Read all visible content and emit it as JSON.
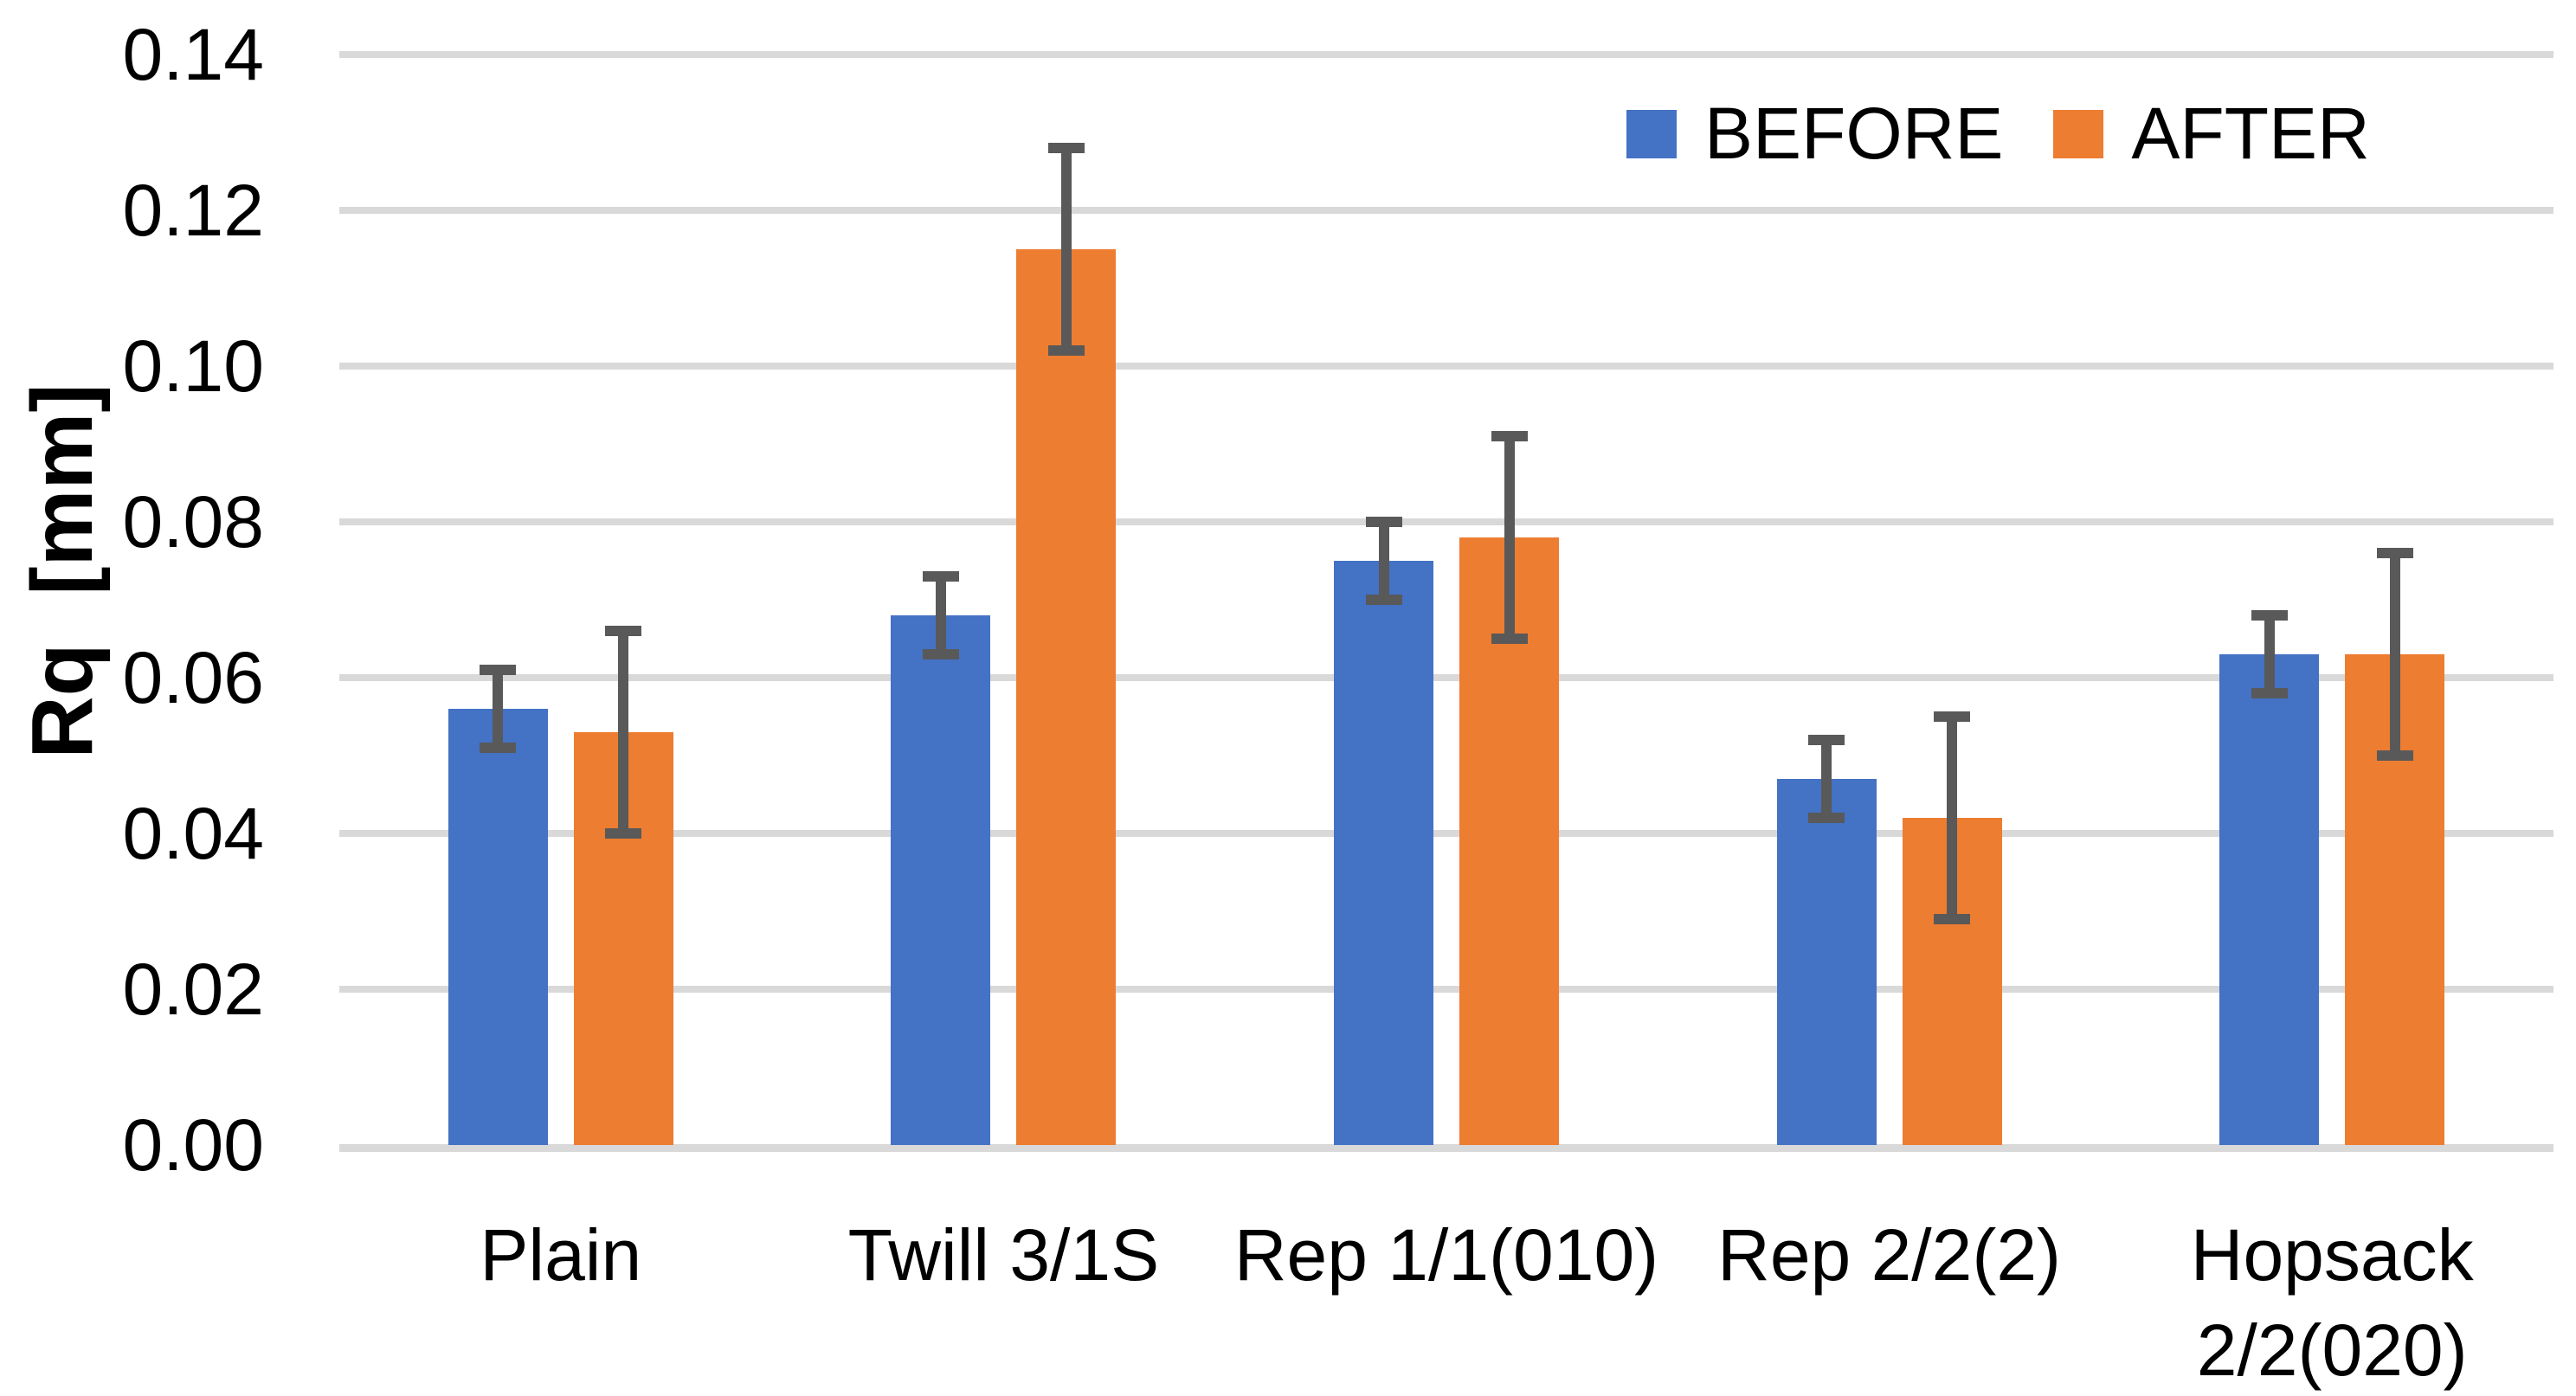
{
  "chart_data": {
    "type": "bar",
    "title": "",
    "ylabel": "Rq  [mm]",
    "xlabel": "",
    "categories": [
      "Plain",
      "Twill 3/1S",
      "Rep 1/1(010)",
      "Rep 2/2(2)",
      "Hopsack\n2/2(020)"
    ],
    "series": [
      {
        "name": "BEFORE",
        "color": "#4472C4",
        "values": [
          0.056,
          0.068,
          0.075,
          0.047,
          0.063
        ],
        "errors": [
          0.005,
          0.005,
          0.005,
          0.005,
          0.005
        ]
      },
      {
        "name": "AFTER",
        "color": "#ED7D31",
        "values": [
          0.053,
          0.115,
          0.078,
          0.042,
          0.063
        ],
        "errors": [
          0.013,
          0.013,
          0.013,
          0.013,
          0.013
        ]
      }
    ],
    "ylim": [
      0.0,
      0.14
    ],
    "ytick_step": 0.02,
    "ytick_labels": [
      "0.00",
      "0.02",
      "0.04",
      "0.06",
      "0.08",
      "0.10",
      "0.12",
      "0.14"
    ],
    "grid": true,
    "legend_position": "top-right",
    "colors": {
      "gridline": "#D9D9D9",
      "error_bar": "#595959",
      "text": "#000000",
      "background": "#FFFFFF"
    }
  }
}
